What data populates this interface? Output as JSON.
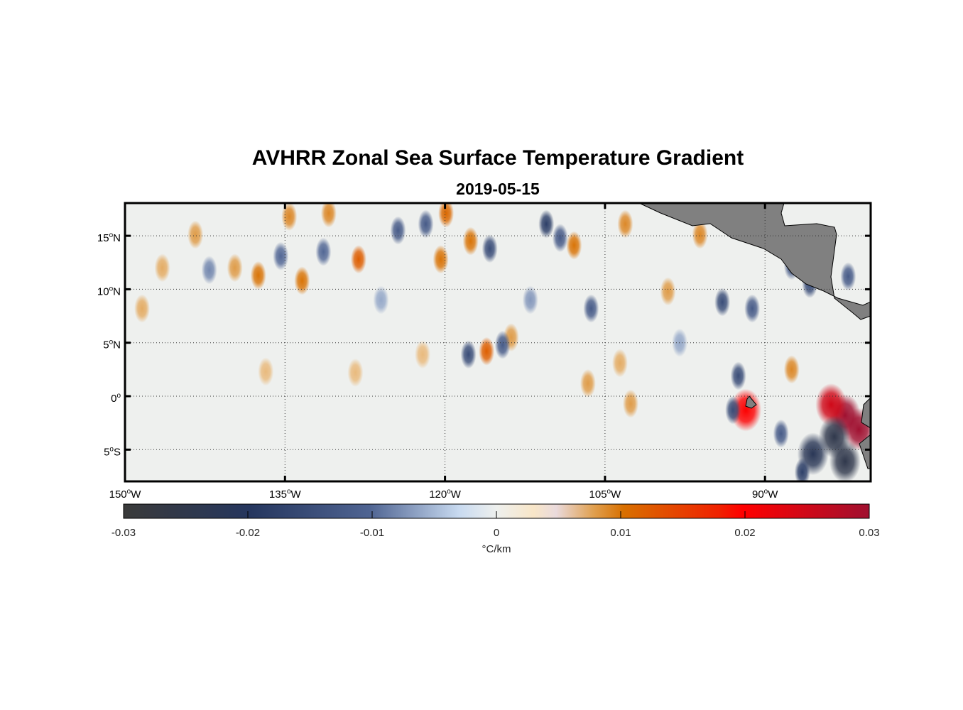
{
  "title": "AVHRR Zonal Sea Surface Temperature Gradient",
  "subtitle": "2019-05-15",
  "chart_data": {
    "type": "heatmap",
    "title": "AVHRR Zonal Sea Surface Temperature Gradient",
    "subtitle": "2019-05-15",
    "xlim": [
      -150,
      -80
    ],
    "ylim": [
      -8,
      18
    ],
    "xticks": [
      {
        "v": -150,
        "deg": "150",
        "h": "W"
      },
      {
        "v": -135,
        "deg": "135",
        "h": "W"
      },
      {
        "v": -120,
        "deg": "120",
        "h": "W"
      },
      {
        "v": -105,
        "deg": "105",
        "h": "W"
      },
      {
        "v": -90,
        "deg": "90",
        "h": "W"
      }
    ],
    "yticks": [
      {
        "v": 15,
        "deg": "15",
        "h": "N"
      },
      {
        "v": 10,
        "deg": "10",
        "h": "N"
      },
      {
        "v": 5,
        "deg": "5",
        "h": "N"
      },
      {
        "v": 0,
        "deg": "0",
        "h": ""
      },
      {
        "v": -5,
        "deg": "5",
        "h": "S"
      }
    ],
    "grid": true,
    "colorbar": {
      "min": -0.03,
      "max": 0.03,
      "ticks": [
        "-0.03",
        "-0.02",
        "-0.01",
        "0",
        "0.01",
        "0.02",
        "0.03"
      ],
      "label": "°C/km"
    },
    "features_lon_lat_value": [
      [
        -134.6,
        16.8,
        0.009
      ],
      [
        -130.9,
        17.1,
        0.009
      ],
      [
        -128.1,
        12.8,
        0.012
      ],
      [
        -137.5,
        11.3,
        0.01
      ],
      [
        -133.4,
        10.8,
        0.01
      ],
      [
        -120.4,
        12.8,
        0.01
      ],
      [
        -119.9,
        17.1,
        0.011
      ],
      [
        -117.6,
        14.5,
        0.01
      ],
      [
        -116.1,
        4.2,
        0.012
      ],
      [
        -113.8,
        5.5,
        0.008
      ],
      [
        -106.6,
        1.2,
        0.008
      ],
      [
        -102.6,
        -0.7,
        0.008
      ],
      [
        -103.6,
        3.1,
        0.007
      ],
      [
        -96.1,
        15.1,
        0.009
      ],
      [
        -99.1,
        9.8,
        0.008
      ],
      [
        -87.5,
        2.5,
        0.009
      ],
      [
        -91.8,
        -1.3,
        0.02
      ],
      [
        -82.5,
        -1.8,
        0.03
      ],
      [
        -83.8,
        -0.8,
        0.025
      ],
      [
        -81.2,
        -3.1,
        0.03
      ],
      [
        -148.4,
        8.2,
        0.007
      ],
      [
        -146.5,
        12,
        0.007
      ],
      [
        -143.4,
        15.1,
        0.008
      ],
      [
        -136.8,
        2.3,
        0.006
      ],
      [
        -128.4,
        2.2,
        0.006
      ],
      [
        -122.1,
        3.9,
        0.006
      ],
      [
        -107.9,
        14.1,
        0.01
      ],
      [
        -103.1,
        16.1,
        0.009
      ],
      [
        -139.7,
        12,
        0.008
      ],
      [
        -117.8,
        3.9,
        -0.015
      ],
      [
        -114.6,
        4.8,
        -0.012
      ],
      [
        -121.8,
        16.1,
        -0.012
      ],
      [
        -124.4,
        15.5,
        -0.012
      ],
      [
        -115.8,
        13.8,
        -0.015
      ],
      [
        -110.5,
        16.1,
        -0.018
      ],
      [
        -109.2,
        14.8,
        -0.012
      ],
      [
        -106.3,
        8.2,
        -0.012
      ],
      [
        -94,
        8.8,
        -0.015
      ],
      [
        -91.2,
        8.2,
        -0.012
      ],
      [
        -92.5,
        1.9,
        -0.015
      ],
      [
        -93,
        -1.3,
        -0.015
      ],
      [
        -83.5,
        -3.8,
        -0.025
      ],
      [
        -85.5,
        -5.4,
        -0.022
      ],
      [
        -82.5,
        -6.1,
        -0.025
      ],
      [
        -86.5,
        -7.1,
        -0.018
      ],
      [
        -88.5,
        -3.5,
        -0.012
      ],
      [
        -87.5,
        12.2,
        -0.012
      ],
      [
        -85.8,
        10.5,
        -0.015
      ],
      [
        -82.2,
        11.2,
        -0.012
      ],
      [
        -142.1,
        11.8,
        -0.008
      ],
      [
        -131.4,
        13.5,
        -0.01
      ],
      [
        -135.4,
        13.1,
        -0.01
      ],
      [
        -126,
        9,
        -0.006
      ],
      [
        -112,
        9,
        -0.007
      ],
      [
        -98,
        5,
        -0.006
      ]
    ],
    "colors": {
      "land": "#808080",
      "ocean_zero": "#eef0ee"
    }
  }
}
